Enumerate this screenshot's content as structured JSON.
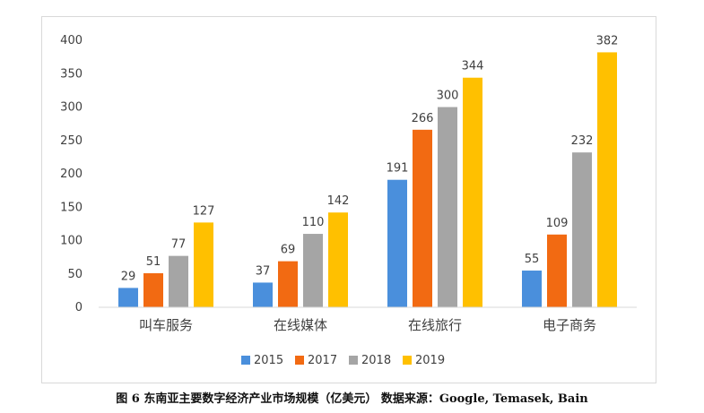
{
  "chart_data": {
    "type": "bar",
    "categories": [
      "叫车服务",
      "在线媒体",
      "在线旅行",
      "电子商务"
    ],
    "series": [
      {
        "name": "2015",
        "values": [
          29,
          37,
          191,
          55
        ],
        "color": "#4a8fdc"
      },
      {
        "name": "2017",
        "values": [
          51,
          69,
          266,
          109
        ],
        "color": "#f26a12"
      },
      {
        "name": "2018",
        "values": [
          77,
          110,
          300,
          232
        ],
        "color": "#a5a5a5"
      },
      {
        "name": "2019",
        "values": [
          127,
          142,
          344,
          382
        ],
        "color": "#ffc000"
      }
    ],
    "yticks": [
      0,
      50,
      100,
      150,
      200,
      250,
      300,
      350,
      400
    ],
    "ylim": [
      0,
      400
    ],
    "grid": false,
    "legend_position": "bottom",
    "data_labels": true
  },
  "caption": "图 6 东南亚主要数字经济产业市场规模（亿美元）   数据来源：Google, Temasek, Bain"
}
